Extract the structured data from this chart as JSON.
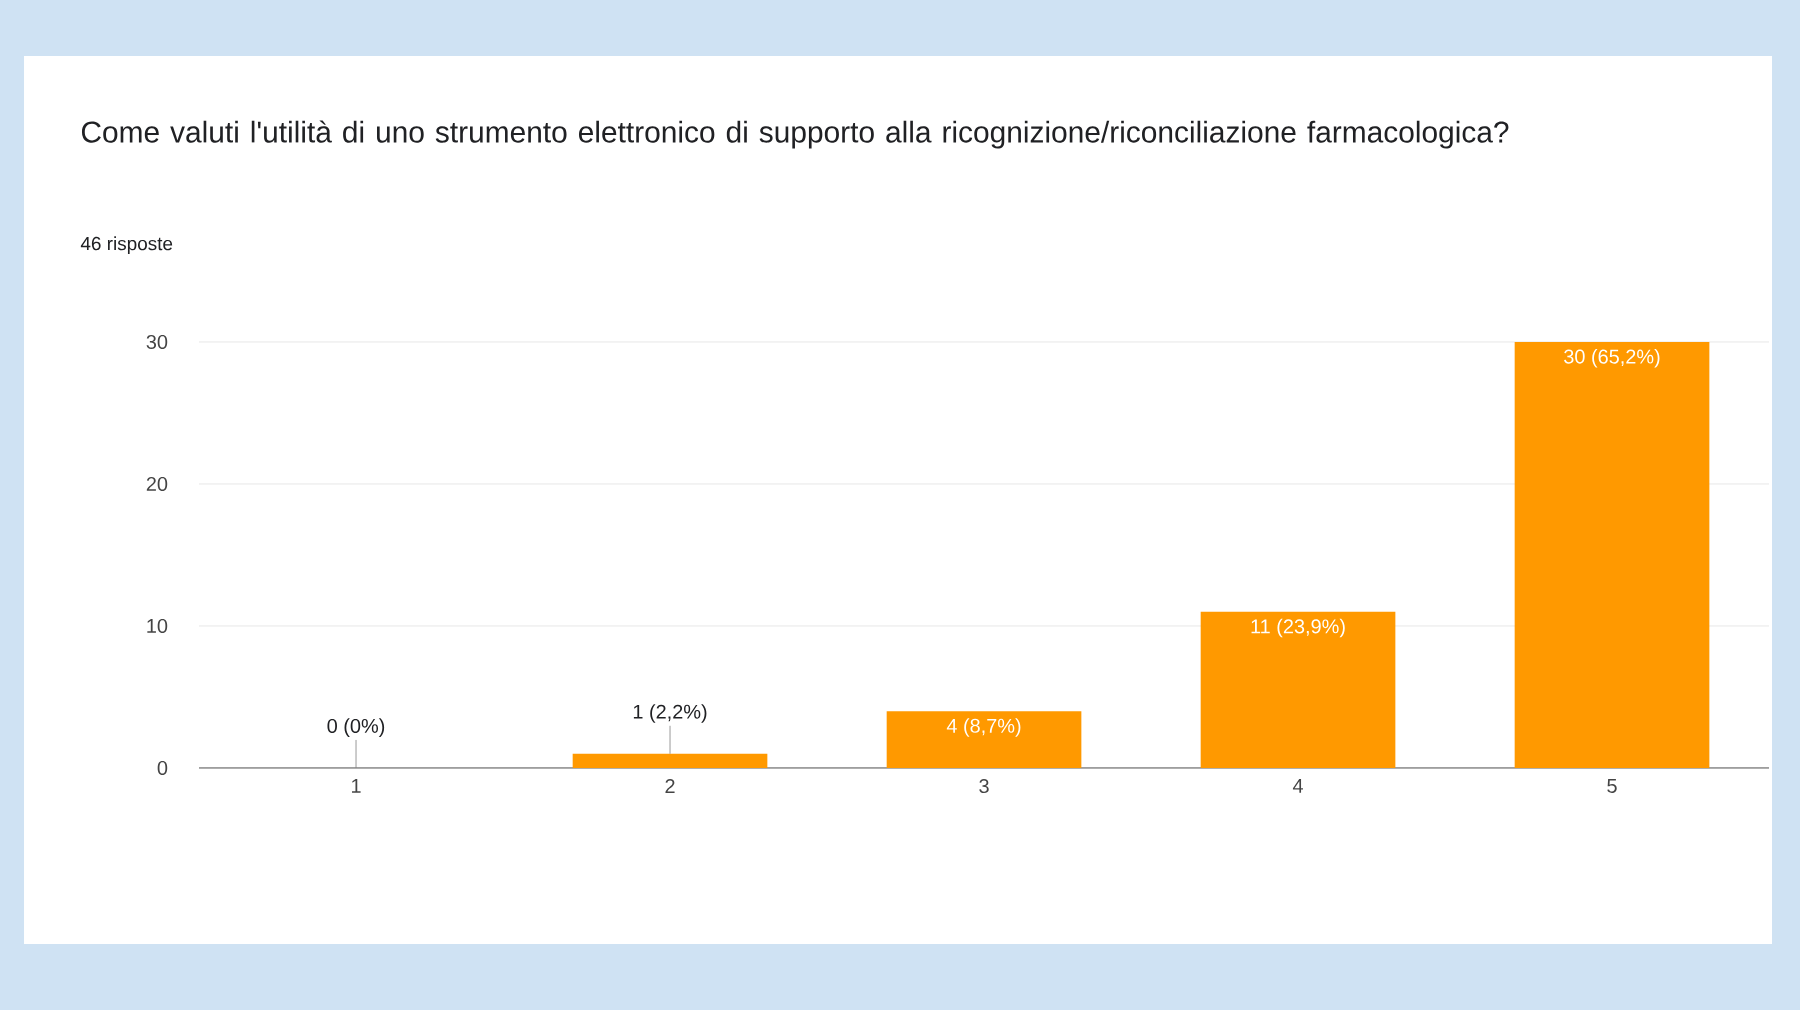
{
  "chart_data": {
    "type": "bar",
    "title": "Come valuti l'utilità di uno strumento elettronico di supporto  alla ricognizione/riconciliazione farmacologica?",
    "subtitle": "46 risposte",
    "categories": [
      "1",
      "2",
      "3",
      "4",
      "5"
    ],
    "values": [
      0,
      1,
      4,
      11,
      30
    ],
    "value_labels": [
      "0 (0%)",
      "1 (2,2%)",
      "4 (8,7%)",
      "11 (23,9%)",
      "30 (65,2%)"
    ],
    "color": "#ff9900",
    "ylim": [
      0,
      30
    ],
    "yticks": [
      0,
      10,
      20,
      30
    ],
    "grid": "y"
  }
}
